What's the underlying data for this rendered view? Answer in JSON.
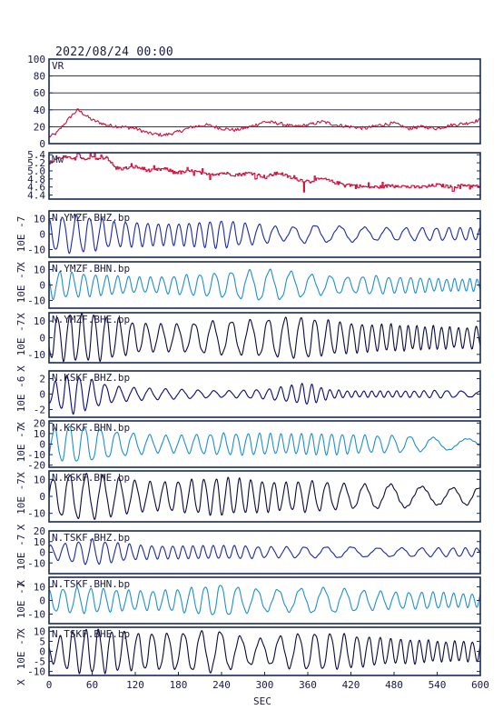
{
  "header": {
    "datetime": "2022/08/24 00:00"
  },
  "colors": {
    "frame": "#1a2a55",
    "red": "#d0103a",
    "navy": "#0a0a78",
    "lightblue": "#1f8fd0",
    "blue": "#1c2aa8",
    "midnight": "#0a0a40",
    "grid": "#1a1a40"
  },
  "chart_data": {
    "type": "line",
    "xlabel": "SEC",
    "xlim": [
      0,
      600
    ],
    "xticks": [
      0,
      60,
      120,
      180,
      240,
      300,
      360,
      420,
      480,
      540,
      600
    ],
    "panels": [
      {
        "label": "VR",
        "ylabel": "",
        "ylim": [
          0,
          100
        ],
        "yticks": [
          0,
          20,
          40,
          60,
          80,
          100
        ],
        "ytick_labels": [
          "0",
          "20",
          "40",
          "60",
          "80",
          "100"
        ],
        "color": "red",
        "grid": true,
        "x": [
          0,
          10,
          20,
          30,
          40,
          50,
          60,
          80,
          100,
          120,
          140,
          160,
          180,
          200,
          220,
          240,
          260,
          280,
          300,
          320,
          340,
          360,
          380,
          400,
          420,
          440,
          460,
          480,
          500,
          520,
          540,
          560,
          580,
          600
        ],
        "values": [
          8,
          12,
          22,
          32,
          40,
          34,
          28,
          22,
          20,
          18,
          12,
          10,
          14,
          20,
          22,
          18,
          16,
          20,
          26,
          24,
          20,
          22,
          26,
          22,
          20,
          18,
          22,
          24,
          18,
          20,
          18,
          22,
          24,
          28
        ]
      },
      {
        "label": "Mw",
        "ylabel": "",
        "ylim": [
          4.3,
          5.45
        ],
        "yticks": [
          4.4,
          4.6,
          4.8,
          5.0,
          5.2,
          5.4
        ],
        "ytick_labels": [
          "4.4",
          "4.6",
          "4.8",
          "5.0",
          "5.2",
          "5.4"
        ],
        "color": "red",
        "grid": false,
        "x": [
          0,
          10,
          20,
          30,
          40,
          50,
          60,
          70,
          80,
          90,
          100,
          120,
          140,
          160,
          180,
          200,
          220,
          240,
          260,
          280,
          300,
          320,
          340,
          360,
          380,
          400,
          420,
          440,
          460,
          480,
          500,
          520,
          540,
          560,
          580,
          600
        ],
        "values": [
          5.2,
          5.3,
          5.35,
          5.3,
          5.4,
          5.25,
          5.35,
          5.3,
          5.35,
          5.1,
          5.05,
          5.1,
          5.0,
          5.05,
          4.95,
          5.0,
          4.9,
          4.95,
          4.9,
          4.95,
          4.85,
          4.95,
          4.8,
          4.75,
          4.8,
          4.7,
          4.65,
          4.6,
          4.6,
          4.65,
          4.6,
          4.6,
          4.65,
          4.6,
          4.65,
          4.6
        ]
      },
      {
        "label": "N.YMZF.BHZ.bp",
        "ylabel": "10E -7",
        "ylim": [
          -15,
          15
        ],
        "yticks": [
          -10,
          0,
          10
        ],
        "ytick_labels": [
          "-10",
          "0",
          "10"
        ],
        "color": "blue",
        "amp": [
          10,
          12,
          11,
          8,
          8,
          7,
          7,
          8,
          9,
          7,
          6,
          4,
          6,
          5,
          5,
          4,
          4,
          4,
          4,
          4,
          4
        ],
        "period": 18
      },
      {
        "label": "N.YMZF.BHN.bp",
        "ylabel": "10E -7",
        "ylim": [
          -15,
          15
        ],
        "yticks": [
          -10,
          0,
          10
        ],
        "ytick_labels": [
          "-10",
          "0",
          "10"
        ],
        "color": "lightblue",
        "amp": [
          9,
          8,
          7,
          6,
          5,
          5,
          6,
          7,
          8,
          9,
          10,
          9,
          7,
          6,
          5,
          6,
          5,
          5,
          4,
          4,
          4
        ],
        "period": 18
      },
      {
        "label": "N.YMZF.BHE.bp",
        "ylabel": "10E -7",
        "ylim": [
          -15,
          15
        ],
        "yticks": [
          -10,
          0,
          10
        ],
        "ytick_labels": [
          "-10",
          "0",
          "10"
        ],
        "color": "midnight",
        "amp": [
          12,
          14,
          14,
          12,
          9,
          8,
          8,
          9,
          10,
          10,
          11,
          12,
          12,
          10,
          9,
          8,
          8,
          7,
          7,
          6,
          7
        ],
        "period": 19
      },
      {
        "label": "N.KSKF.BHZ.bp",
        "ylabel": "10E -6",
        "ylim": [
          -3,
          3
        ],
        "yticks": [
          -2,
          0,
          2
        ],
        "ytick_labels": [
          "-2",
          "0",
          "2"
        ],
        "color": "navy",
        "amp": [
          1.2,
          2.6,
          1.8,
          1.0,
          0.8,
          0.7,
          0.6,
          0.5,
          0.4,
          0.5,
          0.6,
          1.0,
          1.4,
          0.6,
          0.4,
          0.4,
          0.4,
          0.4,
          0.5,
          0.4,
          0.4
        ],
        "period": 18
      },
      {
        "label": "N.KSKF.BHN.bp",
        "ylabel": "10E -7",
        "ylim": [
          -22,
          22
        ],
        "yticks": [
          -20,
          -10,
          0,
          10,
          20
        ],
        "ytick_labels": [
          "-20",
          "-10",
          "0",
          "10",
          "20"
        ],
        "color": "lightblue",
        "amp": [
          14,
          18,
          16,
          12,
          10,
          8,
          8,
          9,
          10,
          10,
          10,
          9,
          10,
          10,
          9,
          8,
          8,
          7,
          6,
          5,
          5
        ],
        "period": 20
      },
      {
        "label": "N.KSKF.BHE.bp",
        "ylabel": "10E -7",
        "ylim": [
          -15,
          15
        ],
        "yticks": [
          -10,
          0,
          10
        ],
        "ytick_labels": [
          "-10",
          "0",
          "10"
        ],
        "color": "midnight",
        "amp": [
          10,
          13,
          13,
          11,
          9,
          8,
          9,
          10,
          11,
          10,
          9,
          8,
          9,
          8,
          7,
          7,
          7,
          6,
          5,
          5,
          5
        ],
        "period": 21
      },
      {
        "label": "N.TSKF.BHZ.bp",
        "ylabel": "10E -7",
        "ylim": [
          -20,
          20
        ],
        "yticks": [
          -10,
          0,
          10,
          20
        ],
        "ytick_labels": [
          "-10",
          "0",
          "10",
          "20"
        ],
        "color": "blue",
        "amp": [
          6,
          9,
          12,
          9,
          7,
          6,
          6,
          6,
          6,
          6,
          5,
          5,
          5,
          5,
          5,
          4,
          4,
          4,
          4,
          4,
          4
        ],
        "period": 18
      },
      {
        "label": "N.TSKF.BHN.bp",
        "ylabel": "10E -7",
        "ylim": [
          -17,
          17
        ],
        "yticks": [
          -10,
          0,
          10
        ],
        "ytick_labels": [
          "-10",
          "0",
          "10"
        ],
        "color": "lightblue",
        "amp": [
          8,
          9,
          9,
          8,
          7,
          7,
          8,
          10,
          12,
          9,
          8,
          8,
          9,
          9,
          8,
          7,
          6,
          6,
          6,
          5,
          5
        ],
        "period": 20
      },
      {
        "label": "N.TSKF.BHE.bp",
        "ylabel": "10E -7",
        "ylim": [
          -12,
          12
        ],
        "yticks": [
          -10,
          -5,
          0,
          5,
          10
        ],
        "ytick_labels": [
          "-10",
          "-5",
          "0",
          "5",
          "10"
        ],
        "color": "midnight",
        "amp": [
          5,
          10,
          11,
          10,
          9,
          9,
          9,
          10,
          10,
          7,
          6,
          8,
          9,
          9,
          8,
          7,
          6,
          6,
          5,
          5,
          5
        ],
        "period": 20
      }
    ]
  }
}
